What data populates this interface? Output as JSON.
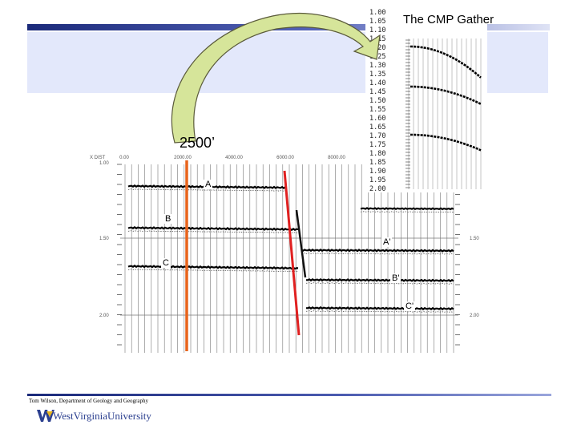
{
  "slide": {
    "cmp_title": "The CMP Gather",
    "offset_label": "2500’",
    "credit": "Tom Wilson, Department of Geology and Geography",
    "university": "WestVirginiaUniversity"
  },
  "gather": {
    "header_label": "X DIST",
    "x_ticks": [
      "0.00",
      "2000.00",
      "4000.00",
      "6000.00",
      "8000.00"
    ],
    "y_ticks_left": [
      "1.00",
      "1.50",
      "2.00"
    ],
    "y_ticks_right": [
      "1.50",
      "2.00"
    ],
    "events": [
      "A",
      "B",
      "C",
      "A'",
      "B'",
      "C'"
    ]
  },
  "inset": {
    "time_ticks": [
      "1.00",
      "1.05",
      "1.10",
      "1.15",
      "1.20",
      "1.25",
      "1.30",
      "1.35",
      "1.40",
      "1.45",
      "1.50",
      "1.55",
      "1.60",
      "1.65",
      "1.70",
      "1.75",
      "1.80",
      "1.85",
      "1.90",
      "1.95",
      "2.00"
    ]
  },
  "colors": {
    "band_dark": "#1b2a7a",
    "title_box": "#e3e8fb",
    "orange_line": "#e8641c",
    "red_line": "#e02020",
    "arrow_fill": "#d6e59a",
    "logo_blue": "#2b3f8f"
  }
}
